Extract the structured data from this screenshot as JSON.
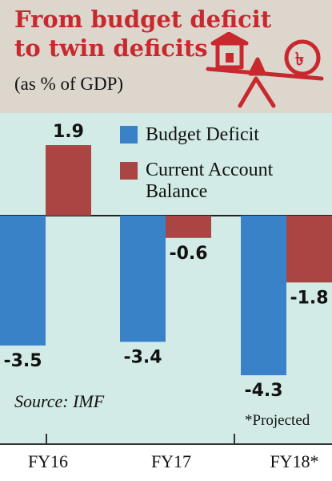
{
  "header": {
    "title_line1": "From budget deficit",
    "title_line2": "to twin deficits",
    "subtitle": "(as % of GDP)",
    "icon": "house-and-taka-seesaw-icon"
  },
  "colors": {
    "budget": "#3a82c8",
    "current": "#ab4543",
    "title": "#c8282e",
    "header_bg": "#dcd6cd",
    "plot_bg": "#d3ebe7"
  },
  "chart_data": {
    "type": "bar",
    "categories": [
      "FY16",
      "FY17",
      "FY18*"
    ],
    "series": [
      {
        "name": "Budget Deficit",
        "values": [
          -3.5,
          -3.4,
          -4.3
        ]
      },
      {
        "name": "Current Account Balance",
        "values": [
          1.9,
          -0.6,
          -1.8
        ]
      }
    ],
    "data_labels": {
      "Budget Deficit": [
        "-3.5",
        "-3.4",
        "-4.3"
      ],
      "Current Account Balance": [
        "1.9",
        "-0.6",
        "-1.8"
      ]
    },
    "ylim": [
      -4.3,
      1.9
    ],
    "legend_position": "top-right",
    "source": "Source: IMF",
    "note": "*Projected"
  },
  "legend": {
    "budget_label": "Budget Deficit",
    "current_label_line1": "Current Account",
    "current_label_line2": "Balance"
  }
}
